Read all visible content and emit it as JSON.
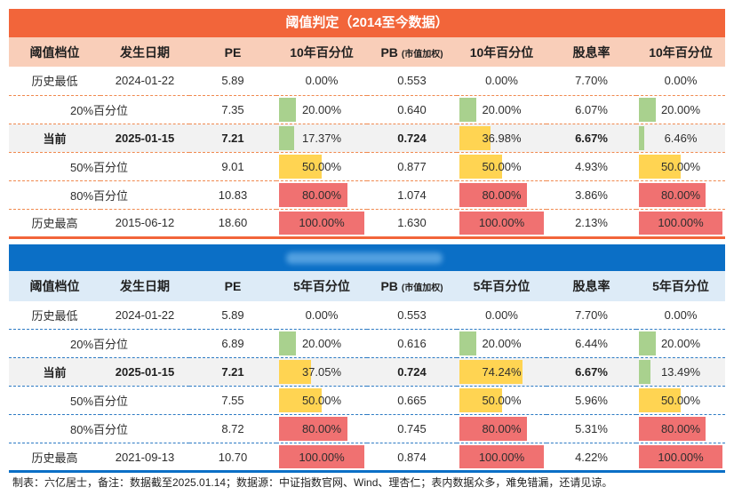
{
  "chart_data": [
    {
      "type": "table",
      "title": "阈值判定（2014至今数据）",
      "columns": [
        "阈值档位",
        "发生日期",
        "PE",
        "10年百分位",
        "PB",
        "10年百分位",
        "股息率",
        "10年百分位"
      ],
      "pb_note": "(市值加权)",
      "rows": [
        [
          "历史最低",
          "2024-01-22",
          "5.89",
          "0.00%",
          "0.553",
          "0.00%",
          "7.70%",
          "0.00%"
        ],
        [
          "20%百分位",
          "",
          "7.35",
          "20.00%",
          "0.640",
          "20.00%",
          "6.07%",
          "20.00%"
        ],
        [
          "当前",
          "2025-01-15",
          "7.21",
          "17.37%",
          "0.724",
          "36.98%",
          "6.67%",
          "6.46%"
        ],
        [
          "50%百分位",
          "",
          "9.01",
          "50.00%",
          "0.877",
          "50.00%",
          "4.93%",
          "50.00%"
        ],
        [
          "80%百分位",
          "",
          "10.83",
          "80.00%",
          "1.074",
          "80.00%",
          "3.86%",
          "80.00%"
        ],
        [
          "历史最高",
          "2015-06-12",
          "18.60",
          "100.00%",
          "1.630",
          "100.00%",
          "2.13%",
          "100.00%"
        ]
      ]
    },
    {
      "type": "table",
      "columns": [
        "阈值档位",
        "发生日期",
        "PE",
        "5年百分位",
        "PB",
        "5年百分位",
        "股息率",
        "5年百分位"
      ],
      "pb_note": "(市值加权)",
      "rows": [
        [
          "历史最低",
          "2024-01-22",
          "5.89",
          "0.00%",
          "0.553",
          "0.00%",
          "7.70%",
          "0.00%"
        ],
        [
          "20%百分位",
          "",
          "6.89",
          "20.00%",
          "0.616",
          "20.00%",
          "6.44%",
          "20.00%"
        ],
        [
          "当前",
          "2025-01-15",
          "7.21",
          "37.05%",
          "0.724",
          "74.24%",
          "6.67%",
          "13.49%"
        ],
        [
          "50%百分位",
          "",
          "7.55",
          "50.00%",
          "0.665",
          "50.00%",
          "5.96%",
          "50.00%"
        ],
        [
          "80%百分位",
          "",
          "8.72",
          "80.00%",
          "0.745",
          "80.00%",
          "5.31%",
          "80.00%"
        ],
        [
          "历史最高",
          "2021-09-13",
          "10.70",
          "100.00%",
          "0.874",
          "100.00%",
          "4.22%",
          "100.00%"
        ]
      ]
    }
  ],
  "footnote": "制表：六亿居士，备注：数据截至2025.01.14；数据源：中证指数官网、Wind、理杏仁；表内数据众多，难免错漏，还请见谅。",
  "colors": {
    "title_bar": "#F2653A",
    "header_1": "#F9CEB9",
    "separator_1": "#F0894F",
    "band": "#0B6FC6",
    "header_2": "#DDEBF7",
    "separator_2": "#2E7BC4",
    "current_row": "#F2F2F2",
    "bar_low": "#A9D18E",
    "bar_mid": "#FFD452",
    "bar_high": "#F07171"
  }
}
